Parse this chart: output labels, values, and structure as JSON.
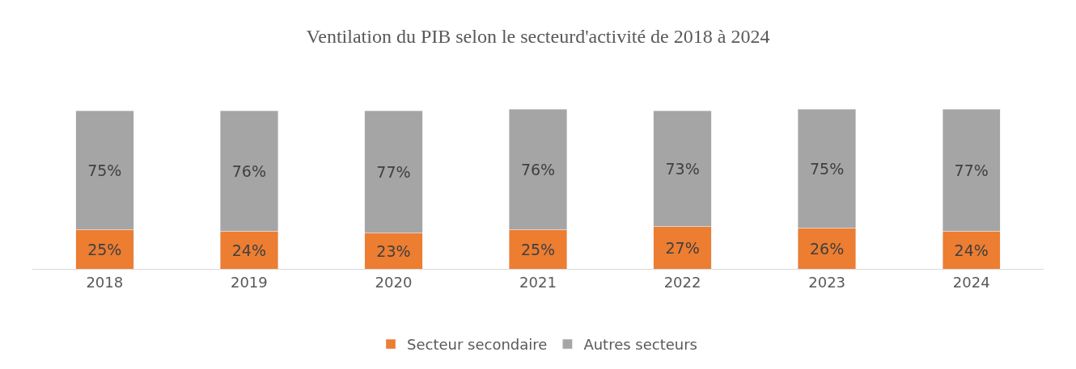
{
  "chart_data": {
    "type": "bar",
    "title": "Ventilation du PIB selon le secteurd'activité de 2018 à 2024",
    "categories": [
      "2018",
      "2019",
      "2020",
      "2021",
      "2022",
      "2023",
      "2024"
    ],
    "series": [
      {
        "name": "Secteur secondaire",
        "color": "#ed7d31",
        "values": [
          25,
          24,
          23,
          25,
          27,
          26,
          24
        ],
        "value_labels": [
          "25%",
          "24%",
          "23%",
          "25%",
          "27%",
          "26%",
          "24%"
        ]
      },
      {
        "name": "Autres secteurs",
        "color": "#a5a5a5",
        "values": [
          75,
          76,
          77,
          76,
          73,
          75,
          77
        ],
        "value_labels": [
          "75%",
          "76%",
          "77%",
          "76%",
          "73%",
          "75%",
          "77%"
        ]
      }
    ],
    "stacked": true,
    "legend": "bottom",
    "tick_labels": "x"
  }
}
